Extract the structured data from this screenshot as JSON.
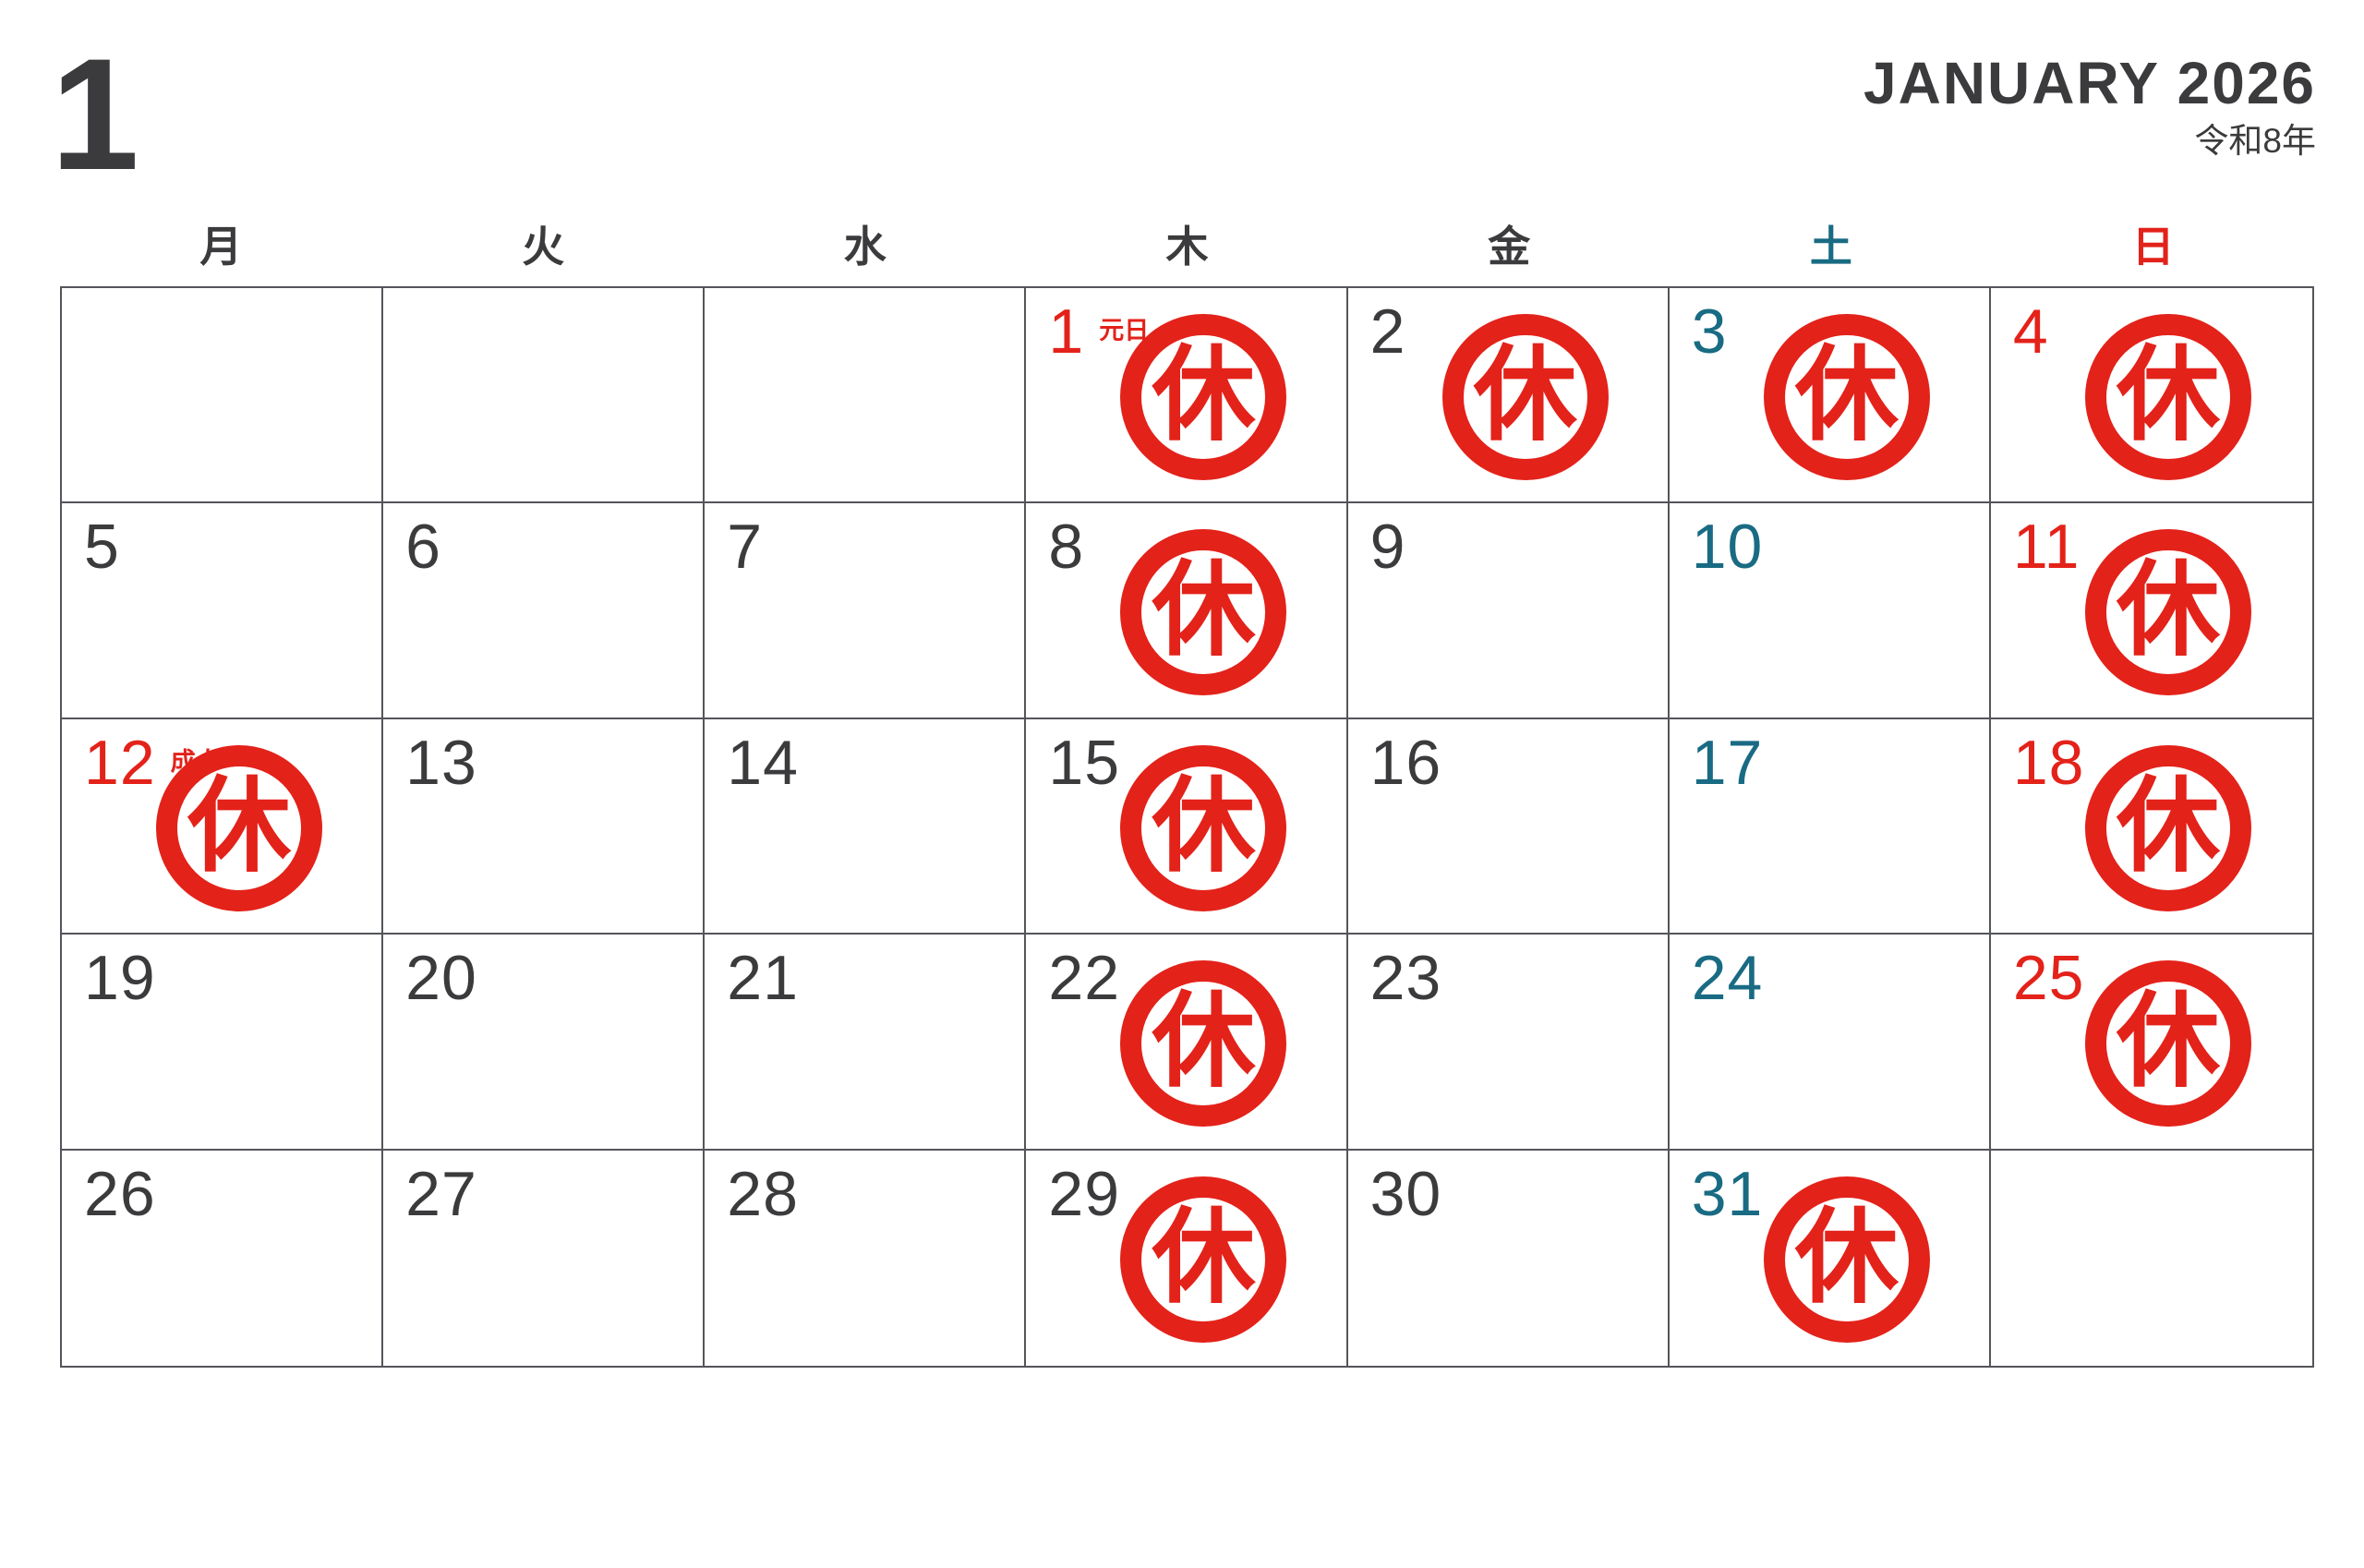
{
  "header": {
    "month_number": "1",
    "title": "JANUARY 2026",
    "era": "令和8年"
  },
  "closed_mark": "休",
  "colors": {
    "red": "#e3221a",
    "teal": "#196b83",
    "ink": "#3b3b3d",
    "line": "#54555a"
  },
  "weekdays": [
    {
      "label": "月",
      "type": "weekday"
    },
    {
      "label": "火",
      "type": "weekday"
    },
    {
      "label": "水",
      "type": "weekday"
    },
    {
      "label": "木",
      "type": "weekday"
    },
    {
      "label": "金",
      "type": "weekday"
    },
    {
      "label": "土",
      "type": "saturday"
    },
    {
      "label": "日",
      "type": "sunday"
    }
  ],
  "weeks": [
    [
      {
        "day": ""
      },
      {
        "day": ""
      },
      {
        "day": ""
      },
      {
        "day": "1",
        "type": "holiday",
        "holiday": "元日",
        "closed": true
      },
      {
        "day": "2",
        "type": "weekday",
        "closed": true
      },
      {
        "day": "3",
        "type": "saturday",
        "closed": true
      },
      {
        "day": "4",
        "type": "sunday",
        "closed": true
      }
    ],
    [
      {
        "day": "5",
        "type": "weekday"
      },
      {
        "day": "6",
        "type": "weekday"
      },
      {
        "day": "7",
        "type": "weekday"
      },
      {
        "day": "8",
        "type": "weekday",
        "closed": true
      },
      {
        "day": "9",
        "type": "weekday"
      },
      {
        "day": "10",
        "type": "saturday"
      },
      {
        "day": "11",
        "type": "sunday",
        "closed": true
      }
    ],
    [
      {
        "day": "12",
        "type": "holiday",
        "holiday": "成人の日",
        "closed": true
      },
      {
        "day": "13",
        "type": "weekday"
      },
      {
        "day": "14",
        "type": "weekday"
      },
      {
        "day": "15",
        "type": "weekday",
        "closed": true
      },
      {
        "day": "16",
        "type": "weekday"
      },
      {
        "day": "17",
        "type": "saturday"
      },
      {
        "day": "18",
        "type": "sunday",
        "closed": true
      }
    ],
    [
      {
        "day": "19",
        "type": "weekday"
      },
      {
        "day": "20",
        "type": "weekday"
      },
      {
        "day": "21",
        "type": "weekday"
      },
      {
        "day": "22",
        "type": "weekday",
        "closed": true
      },
      {
        "day": "23",
        "type": "weekday"
      },
      {
        "day": "24",
        "type": "saturday"
      },
      {
        "day": "25",
        "type": "sunday",
        "closed": true
      }
    ],
    [
      {
        "day": "26",
        "type": "weekday"
      },
      {
        "day": "27",
        "type": "weekday"
      },
      {
        "day": "28",
        "type": "weekday"
      },
      {
        "day": "29",
        "type": "weekday",
        "closed": true
      },
      {
        "day": "30",
        "type": "weekday"
      },
      {
        "day": "31",
        "type": "saturday",
        "closed": true
      },
      {
        "day": ""
      }
    ]
  ]
}
